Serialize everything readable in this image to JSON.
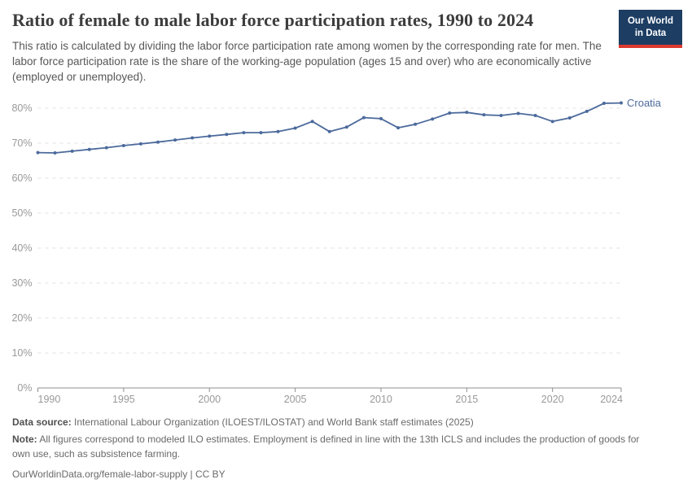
{
  "header": {
    "title": "Ratio of female to male labor force participation rates, 1990 to 2024",
    "subtitle": "This ratio is calculated by dividing the labor force participation rate among women by the corresponding rate for men. The labor force participation rate is the share of the working-age population (ages 15 and over) who are economically active (employed or unemployed).",
    "logo": {
      "line1": "Our World",
      "line2": "in Data",
      "bg_color": "#1d3d63",
      "accent_color": "#dc3a2f"
    }
  },
  "chart_data": {
    "type": "line",
    "title": "Ratio of female to male labor force participation rates, 1990 to 2024",
    "xlabel": "",
    "ylabel": "",
    "xlim": [
      1990,
      2024
    ],
    "ylim": [
      0,
      85
    ],
    "grid": "horizontal-dashed",
    "legend_position": "end-of-line",
    "x_ticks": [
      1990,
      1995,
      2000,
      2005,
      2010,
      2015,
      2020,
      2024
    ],
    "x_tick_labels": [
      "1990",
      "1995",
      "2000",
      "2005",
      "2010",
      "2015",
      "2020",
      "2024"
    ],
    "y_ticks": [
      0,
      10,
      20,
      30,
      40,
      50,
      60,
      70,
      80
    ],
    "y_tick_labels": [
      "0%",
      "10%",
      "20%",
      "30%",
      "40%",
      "50%",
      "60%",
      "70%",
      "80%"
    ],
    "series": [
      {
        "name": "Croatia",
        "color": "#4c6a9c",
        "x": [
          1990,
          1991,
          1992,
          1993,
          1994,
          1995,
          1996,
          1997,
          1998,
          1999,
          2000,
          2001,
          2002,
          2003,
          2004,
          2005,
          2006,
          2007,
          2008,
          2009,
          2010,
          2011,
          2012,
          2013,
          2014,
          2015,
          2016,
          2017,
          2018,
          2019,
          2020,
          2021,
          2022,
          2023,
          2024
        ],
        "values": [
          67.3,
          67.2,
          67.7,
          68.2,
          68.7,
          69.3,
          69.8,
          70.3,
          70.9,
          71.5,
          72.0,
          72.5,
          73.0,
          73.0,
          73.3,
          74.3,
          76.2,
          73.3,
          74.6,
          77.3,
          77.0,
          74.4,
          75.4,
          76.9,
          78.6,
          78.8,
          78.1,
          77.9,
          78.5,
          77.9,
          76.2,
          77.2,
          79.1,
          81.4,
          81.5
        ]
      }
    ],
    "end_label": "Croatia",
    "axis_color": "#8f8f8f",
    "tick_label_color": "#999999",
    "gridline_color": "#e0e0e0"
  },
  "footer": {
    "data_source_label": "Data source:",
    "data_source_text": "International Labour Organization (ILOEST/ILOSTAT) and World Bank staff estimates (2025)",
    "note_label": "Note:",
    "note_text": "All figures correspond to modeled ILO estimates. Employment is defined in line with the 13th ICLS and includes the production of goods for own use, such as subsistence farming.",
    "url": "OurWorldinData.org/female-labor-supply",
    "separator": "|",
    "license": "CC BY"
  }
}
